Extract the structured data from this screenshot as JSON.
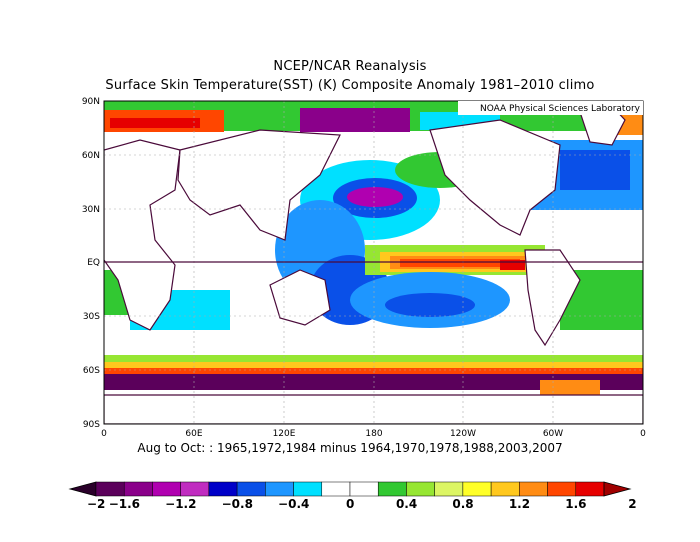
{
  "header": {
    "line1": "NCEP/NCAR Reanalysis",
    "line2": "Surface Skin Temperature(SST) (K) Composite Anomaly 1981–2010 climo"
  },
  "credit": "NOAA Physical Sciences Laboratory",
  "axes": {
    "lat_labels": [
      "90N",
      "60N",
      "30N",
      "EQ",
      "30S",
      "60S",
      "90S"
    ],
    "lon_labels": [
      "0",
      "60E",
      "120E",
      "180",
      "120W",
      "60W",
      "0"
    ]
  },
  "footer": "Aug to Oct: : 1965,1972,1984 minus 1964,1970,1978,1988,2003,2007",
  "colorbar": {
    "labels": [
      "−2",
      "−1.6",
      "−1.2",
      "−0.8",
      "−0.4",
      "0",
      "0.4",
      "0.8",
      "1.2",
      "1.6",
      "2"
    ],
    "colors": [
      "#5b005b",
      "#8a008a",
      "#b000b0",
      "#c02cc0",
      "#0000c8",
      "#0a50e8",
      "#1e96ff",
      "#00e0ff",
      "#ffffff",
      "#ffffff",
      "#32c832",
      "#96e632",
      "#dcf564",
      "#ffff28",
      "#ffc81e",
      "#ff8c14",
      "#ff4600",
      "#e60000"
    ],
    "left_tip": "#2a002a",
    "right_tip": "#a00000"
  },
  "colors": {
    "coast": "#4a0a3a",
    "frame": "#000000",
    "grid": "#aaaaaa"
  }
}
